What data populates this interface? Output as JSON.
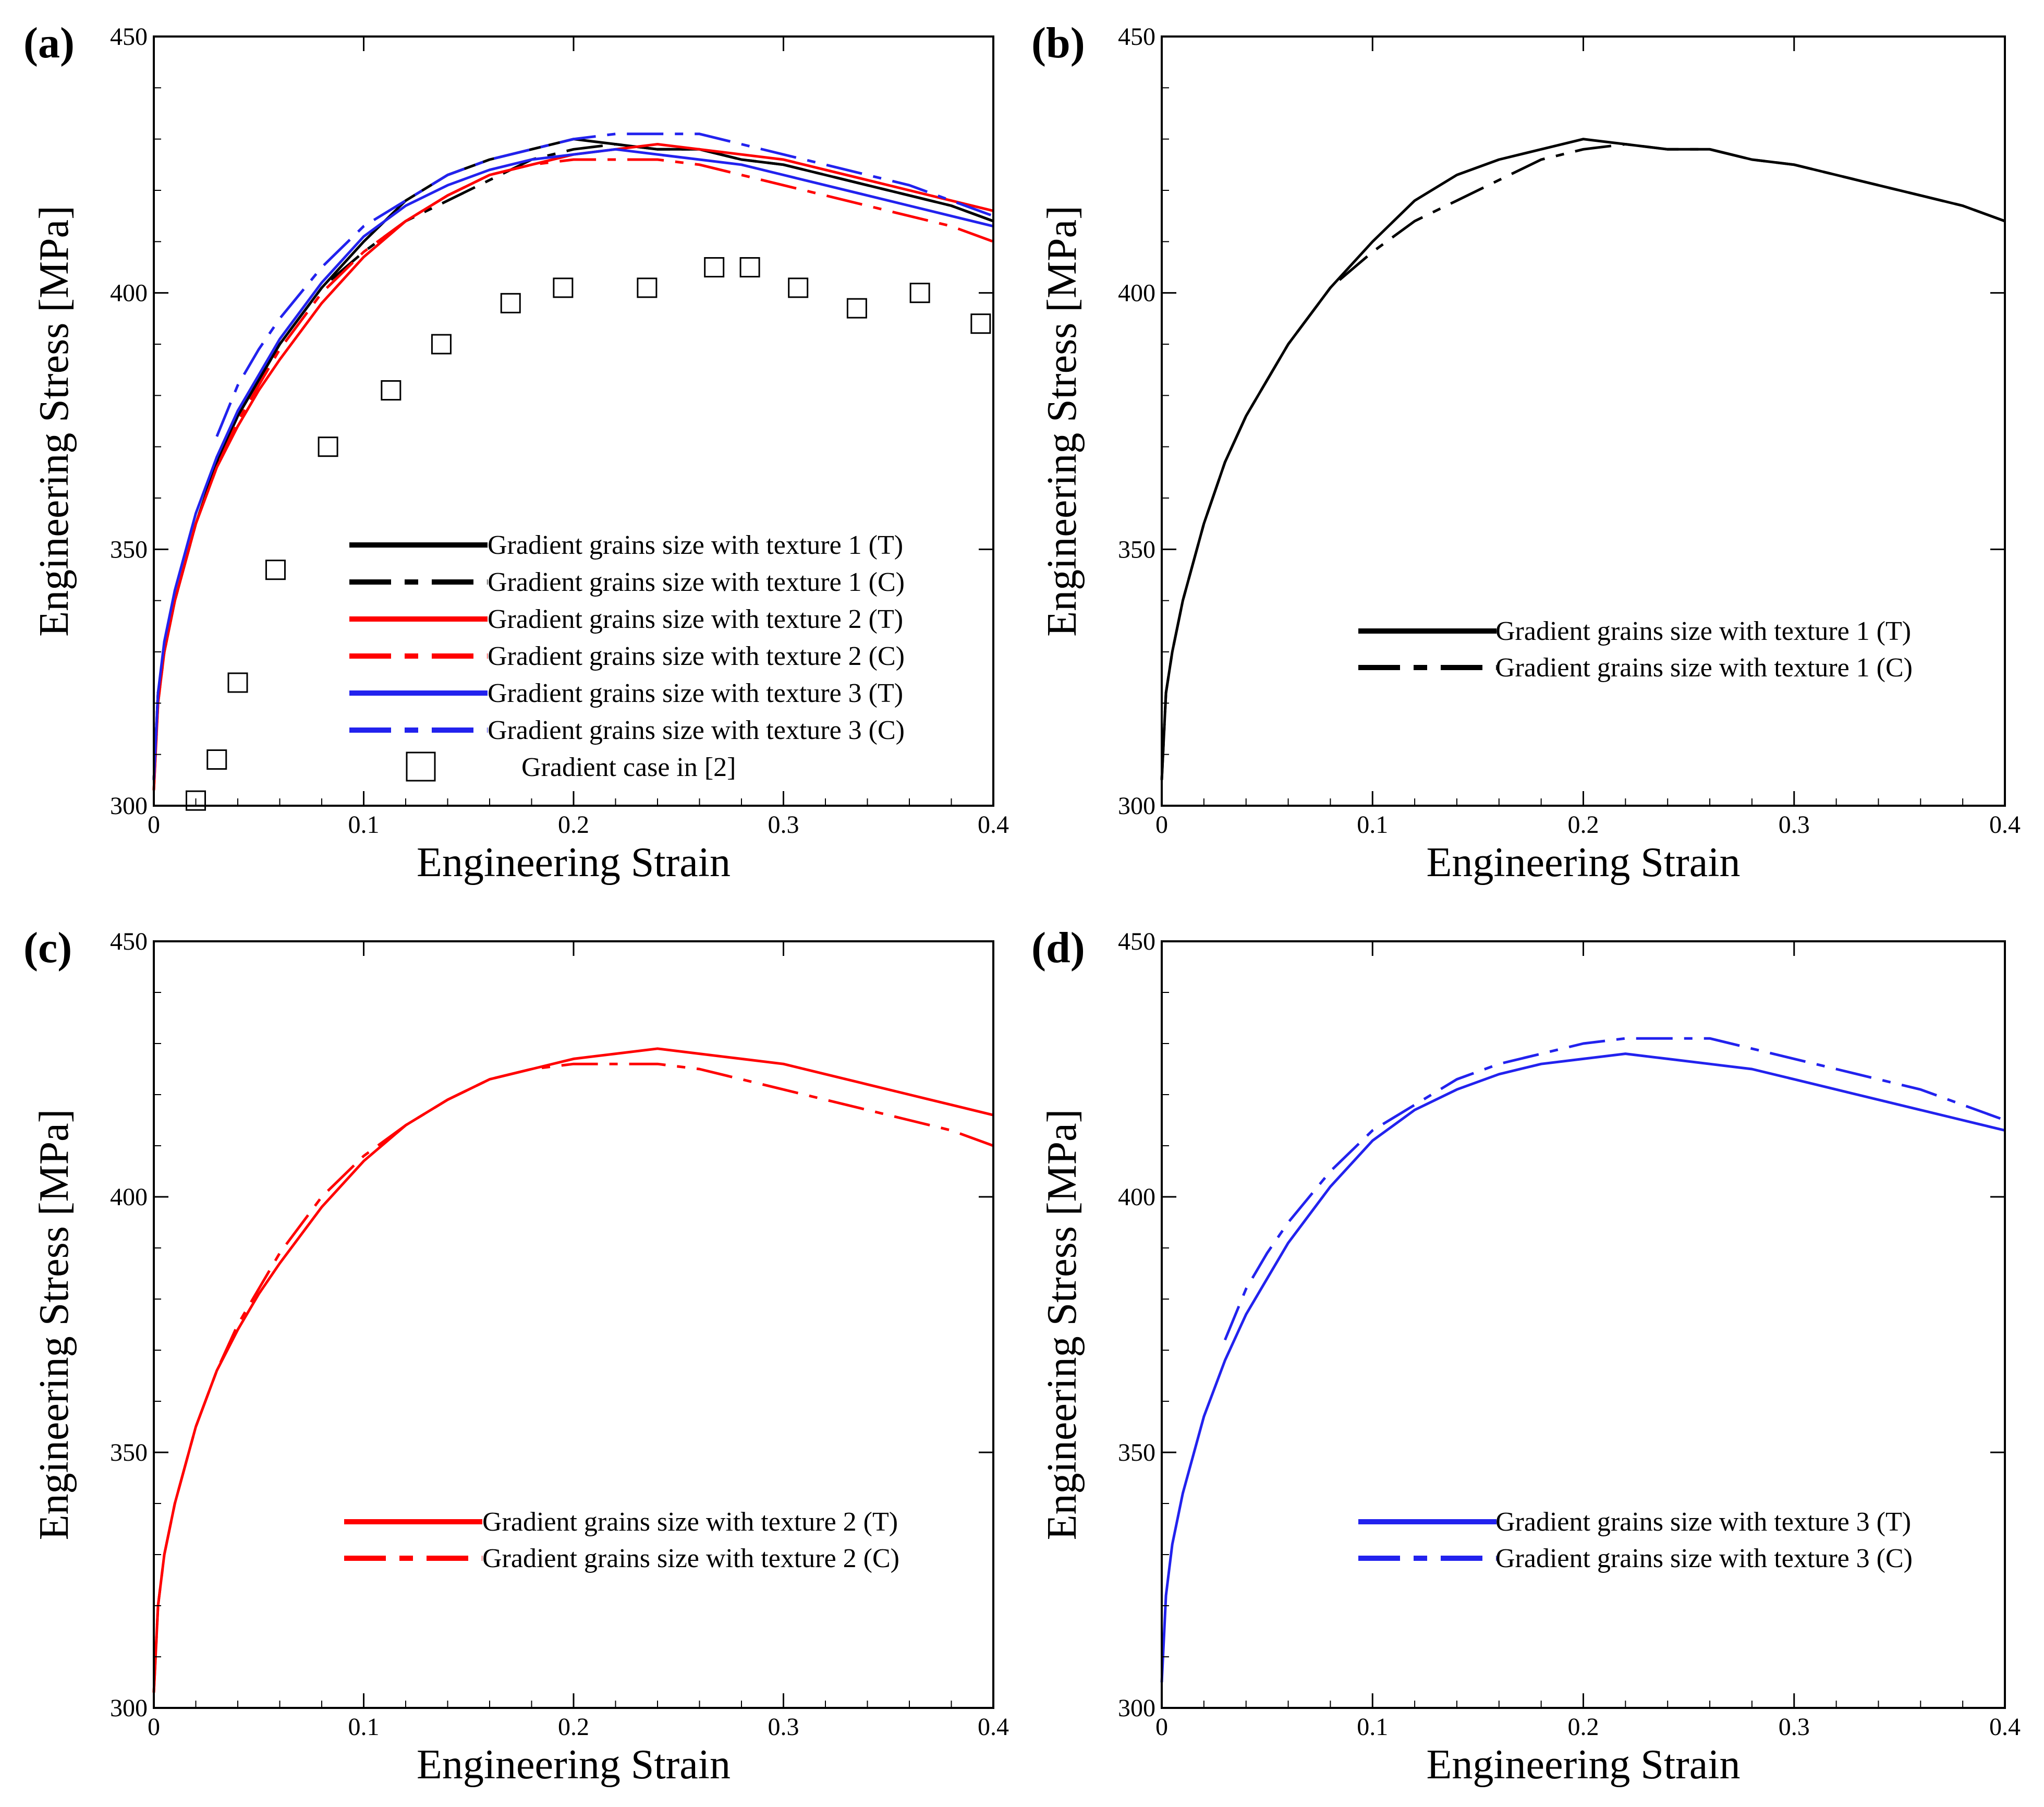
{
  "figure": {
    "background": "#ffffff"
  },
  "chart_data": [
    {
      "panel": "(a)",
      "type": "line",
      "xlabel": "Engineering Strain",
      "ylabel": "Engineering Stress [MPa]",
      "xlim": [
        0,
        0.4
      ],
      "ylim": [
        300,
        450
      ],
      "xticks": [
        0,
        0.1,
        0.2,
        0.3,
        0.4
      ],
      "yticks": [
        300,
        350,
        400,
        450
      ],
      "legend_position": "bottom-right",
      "series": [
        {
          "name": "Gradient grains size with texture 1 (T)",
          "color": "#000000",
          "dash": "solid",
          "x": [
            0,
            0.002,
            0.005,
            0.01,
            0.02,
            0.03,
            0.04,
            0.05,
            0.06,
            0.08,
            0.1,
            0.12,
            0.14,
            0.16,
            0.18,
            0.2,
            0.22,
            0.24,
            0.26,
            0.28,
            0.3,
            0.32,
            0.34,
            0.36,
            0.38,
            0.4
          ],
          "y": [
            305,
            322,
            330,
            340,
            355,
            367,
            376,
            383,
            390,
            401,
            410,
            418,
            423,
            426,
            428,
            430,
            429,
            428,
            428,
            426,
            425,
            423,
            421,
            419,
            417,
            414
          ]
        },
        {
          "name": "Gradient grains size with texture 1 (C)",
          "color": "#000000",
          "dash": "dashdot",
          "x": [
            0,
            0.002,
            0.005,
            0.01,
            0.02,
            0.03,
            0.04,
            0.05,
            0.06,
            0.08,
            0.1,
            0.12,
            0.14,
            0.16,
            0.18,
            0.2,
            0.22,
            0.24,
            0.26,
            0.28,
            0.3,
            0.32,
            0.34,
            0.36,
            0.38,
            0.4
          ],
          "y": [
            305,
            322,
            330,
            340,
            355,
            367,
            376,
            383,
            390,
            401,
            408,
            414,
            418,
            422,
            426,
            428,
            429,
            428,
            428,
            426,
            425,
            423,
            421,
            419,
            417,
            414
          ]
        },
        {
          "name": "Gradient grains size with texture 2 (T)",
          "color": "#ff0000",
          "dash": "solid",
          "x": [
            0,
            0.002,
            0.005,
            0.01,
            0.02,
            0.03,
            0.04,
            0.05,
            0.06,
            0.08,
            0.1,
            0.12,
            0.14,
            0.16,
            0.18,
            0.2,
            0.22,
            0.24,
            0.26,
            0.28,
            0.3,
            0.32,
            0.34,
            0.36,
            0.38,
            0.4
          ],
          "y": [
            303,
            320,
            330,
            340,
            355,
            366,
            374,
            381,
            387,
            398,
            407,
            414,
            419,
            423,
            425,
            427,
            428,
            429,
            428,
            427,
            426,
            424,
            422,
            420,
            418,
            416
          ]
        },
        {
          "name": "Gradient grains size with texture 2 (C)",
          "color": "#ff0000",
          "dash": "dashdot",
          "x": [
            0,
            0.002,
            0.005,
            0.01,
            0.02,
            0.03,
            0.04,
            0.05,
            0.06,
            0.08,
            0.1,
            0.12,
            0.14,
            0.16,
            0.18,
            0.2,
            0.22,
            0.24,
            0.26,
            0.28,
            0.3,
            0.32,
            0.34,
            0.36,
            0.38,
            0.4
          ],
          "y": [
            303,
            320,
            330,
            340,
            355,
            366,
            375,
            382,
            389,
            400,
            408,
            414,
            419,
            423,
            425,
            426,
            426,
            426,
            425,
            423,
            421,
            419,
            417,
            415,
            413,
            410
          ]
        },
        {
          "name": "Gradient grains size with texture 3 (T)",
          "color": "#2222ee",
          "dash": "solid",
          "x": [
            0,
            0.002,
            0.005,
            0.01,
            0.02,
            0.03,
            0.04,
            0.05,
            0.06,
            0.08,
            0.1,
            0.12,
            0.14,
            0.16,
            0.18,
            0.2,
            0.22,
            0.24,
            0.26,
            0.28,
            0.3,
            0.32,
            0.34,
            0.36,
            0.38,
            0.4
          ],
          "y": [
            305,
            322,
            332,
            342,
            357,
            368,
            377,
            384,
            391,
            402,
            411,
            417,
            421,
            424,
            426,
            427,
            428,
            427,
            426,
            425,
            423,
            421,
            419,
            417,
            415,
            413
          ]
        },
        {
          "name": "Gradient grains size with texture 3 (C)",
          "color": "#2222ee",
          "dash": "dashdot",
          "x": [
            0.03,
            0.04,
            0.05,
            0.06,
            0.08,
            0.1,
            0.12,
            0.14,
            0.16,
            0.18,
            0.2,
            0.22,
            0.24,
            0.26,
            0.28,
            0.3,
            0.32,
            0.34,
            0.36,
            0.38,
            0.4
          ],
          "y": [
            372,
            382,
            389,
            395,
            405,
            413,
            418,
            423,
            426,
            428,
            430,
            431,
            431,
            431,
            429,
            427,
            425,
            423,
            421,
            418,
            415
          ]
        },
        {
          "name": "Gradient case in [2]",
          "color": "#000000",
          "marker": "square",
          "x": [
            0.02,
            0.03,
            0.04,
            0.058,
            0.083,
            0.113,
            0.137,
            0.17,
            0.195,
            0.235,
            0.267,
            0.284,
            0.307,
            0.335,
            0.365,
            0.394
          ],
          "y": [
            301,
            309,
            324,
            346,
            370,
            381,
            390,
            398,
            401,
            401,
            405,
            405,
            401,
            397,
            400,
            394
          ]
        }
      ]
    },
    {
      "panel": "(b)",
      "type": "line",
      "xlabel": "Engineering Strain",
      "ylabel": "Engineering Stress [MPa]",
      "xlim": [
        0,
        0.4
      ],
      "ylim": [
        300,
        450
      ],
      "xticks": [
        0,
        0.1,
        0.2,
        0.3,
        0.4
      ],
      "yticks": [
        300,
        350,
        400,
        450
      ],
      "legend_position": "middle-right",
      "series": [
        {
          "name": "Gradient grains size with texture 1 (T)",
          "color": "#000000",
          "dash": "solid",
          "x": [
            0,
            0.002,
            0.005,
            0.01,
            0.02,
            0.03,
            0.04,
            0.05,
            0.06,
            0.08,
            0.1,
            0.12,
            0.14,
            0.16,
            0.18,
            0.2,
            0.22,
            0.24,
            0.26,
            0.28,
            0.3,
            0.32,
            0.34,
            0.36,
            0.38,
            0.4
          ],
          "y": [
            305,
            322,
            330,
            340,
            355,
            367,
            376,
            383,
            390,
            401,
            410,
            418,
            423,
            426,
            428,
            430,
            429,
            428,
            428,
            426,
            425,
            423,
            421,
            419,
            417,
            414
          ]
        },
        {
          "name": "Gradient grains size with texture 1 (C)",
          "color": "#000000",
          "dash": "dashdot",
          "x": [
            0,
            0.002,
            0.005,
            0.01,
            0.02,
            0.03,
            0.04,
            0.05,
            0.06,
            0.08,
            0.1,
            0.12,
            0.14,
            0.16,
            0.18,
            0.2,
            0.22,
            0.24,
            0.26,
            0.28,
            0.3,
            0.32,
            0.34,
            0.36,
            0.38,
            0.4
          ],
          "y": [
            305,
            322,
            330,
            340,
            355,
            367,
            376,
            383,
            390,
            401,
            408,
            414,
            418,
            422,
            426,
            428,
            429,
            428,
            428,
            426,
            425,
            423,
            421,
            419,
            417,
            414
          ]
        }
      ]
    },
    {
      "panel": "(c)",
      "type": "line",
      "xlabel": "Engineering Strain",
      "ylabel": "Engineering Stress [MPa]",
      "xlim": [
        0,
        0.4
      ],
      "ylim": [
        300,
        450
      ],
      "xticks": [
        0,
        0.1,
        0.2,
        0.3,
        0.4
      ],
      "yticks": [
        300,
        350,
        400,
        450
      ],
      "legend_position": "bottom-right",
      "series": [
        {
          "name": "Gradient grains size with texture 2 (T)",
          "color": "#ff0000",
          "dash": "solid",
          "x": [
            0,
            0.002,
            0.005,
            0.01,
            0.02,
            0.03,
            0.04,
            0.05,
            0.06,
            0.08,
            0.1,
            0.12,
            0.14,
            0.16,
            0.18,
            0.2,
            0.22,
            0.24,
            0.26,
            0.28,
            0.3,
            0.32,
            0.34,
            0.36,
            0.38,
            0.4
          ],
          "y": [
            303,
            320,
            330,
            340,
            355,
            366,
            374,
            381,
            387,
            398,
            407,
            414,
            419,
            423,
            425,
            427,
            428,
            429,
            428,
            427,
            426,
            424,
            422,
            420,
            418,
            416
          ]
        },
        {
          "name": "Gradient grains size with texture 2 (C)",
          "color": "#ff0000",
          "dash": "dashdot",
          "x": [
            0,
            0.002,
            0.005,
            0.01,
            0.02,
            0.03,
            0.04,
            0.05,
            0.06,
            0.08,
            0.1,
            0.12,
            0.14,
            0.16,
            0.18,
            0.2,
            0.22,
            0.24,
            0.26,
            0.28,
            0.3,
            0.32,
            0.34,
            0.36,
            0.38,
            0.4
          ],
          "y": [
            303,
            320,
            330,
            340,
            355,
            366,
            375,
            382,
            389,
            400,
            408,
            414,
            419,
            423,
            425,
            426,
            426,
            426,
            425,
            423,
            421,
            419,
            417,
            415,
            413,
            410
          ]
        }
      ]
    },
    {
      "panel": "(d)",
      "type": "line",
      "xlabel": "Engineering Strain",
      "ylabel": "Engineering Stress [MPa]",
      "xlim": [
        0,
        0.4
      ],
      "ylim": [
        300,
        450
      ],
      "xticks": [
        0,
        0.1,
        0.2,
        0.3,
        0.4
      ],
      "yticks": [
        300,
        350,
        400,
        450
      ],
      "legend_position": "bottom-right",
      "series": [
        {
          "name": "Gradient grains size with texture 3 (T)",
          "color": "#2222ee",
          "dash": "solid",
          "x": [
            0,
            0.002,
            0.005,
            0.01,
            0.02,
            0.03,
            0.04,
            0.05,
            0.06,
            0.08,
            0.1,
            0.12,
            0.14,
            0.16,
            0.18,
            0.2,
            0.22,
            0.24,
            0.26,
            0.28,
            0.3,
            0.32,
            0.34,
            0.36,
            0.38,
            0.4
          ],
          "y": [
            305,
            322,
            332,
            342,
            357,
            368,
            377,
            384,
            391,
            402,
            411,
            417,
            421,
            424,
            426,
            427,
            428,
            427,
            426,
            425,
            423,
            421,
            419,
            417,
            415,
            413
          ]
        },
        {
          "name": "Gradient grains size with texture 3 (C)",
          "color": "#2222ee",
          "dash": "dashdot",
          "x": [
            0.03,
            0.04,
            0.05,
            0.06,
            0.08,
            0.1,
            0.12,
            0.14,
            0.16,
            0.18,
            0.2,
            0.22,
            0.24,
            0.26,
            0.28,
            0.3,
            0.32,
            0.34,
            0.36,
            0.38,
            0.4
          ],
          "y": [
            372,
            382,
            389,
            395,
            405,
            413,
            418,
            423,
            426,
            428,
            430,
            431,
            431,
            431,
            429,
            427,
            425,
            423,
            421,
            418,
            415
          ]
        }
      ]
    }
  ]
}
